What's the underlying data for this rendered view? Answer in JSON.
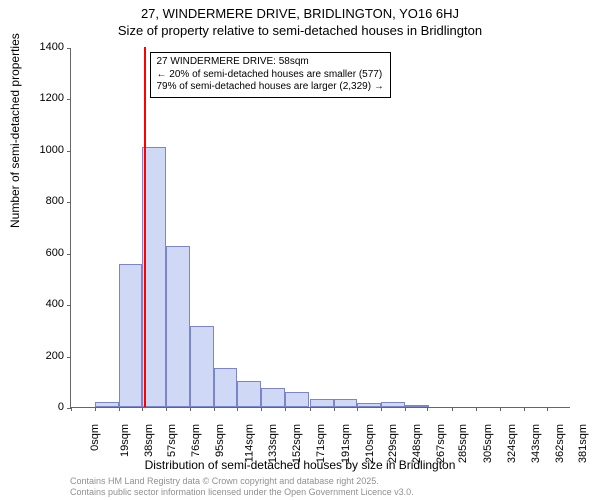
{
  "title": {
    "line1": "27, WINDERMERE DRIVE, BRIDLINGTON, YO16 6HJ",
    "line2": "Size of property relative to semi-detached houses in Bridlington"
  },
  "axes": {
    "ylabel": "Number of semi-detached properties",
    "xlabel": "Distribution of semi-detached houses by size in Bridlington",
    "ylim": [
      0,
      1400
    ],
    "yticks": [
      0,
      200,
      400,
      600,
      800,
      1000,
      1200,
      1400
    ],
    "xlim_sqm": [
      0,
      400
    ],
    "xticks_sqm": [
      0,
      19,
      38,
      57,
      76,
      95,
      114,
      133,
      152,
      171,
      191,
      210,
      229,
      248,
      267,
      285,
      305,
      324,
      343,
      362,
      381
    ],
    "xtick_suffix": "sqm",
    "label_fontsize": 12,
    "tick_fontsize": 11
  },
  "chart": {
    "type": "histogram",
    "bar_fill": "#cfd9f5",
    "bar_border": "#7a86c9",
    "bin_width_sqm": 19,
    "bins": [
      {
        "start": 0,
        "count": 0
      },
      {
        "start": 19,
        "count": 20
      },
      {
        "start": 38,
        "count": 555
      },
      {
        "start": 57,
        "count": 1010
      },
      {
        "start": 76,
        "count": 625
      },
      {
        "start": 95,
        "count": 315
      },
      {
        "start": 114,
        "count": 150
      },
      {
        "start": 133,
        "count": 100
      },
      {
        "start": 152,
        "count": 75
      },
      {
        "start": 171,
        "count": 60
      },
      {
        "start": 191,
        "count": 30
      },
      {
        "start": 210,
        "count": 30
      },
      {
        "start": 229,
        "count": 15
      },
      {
        "start": 248,
        "count": 20
      },
      {
        "start": 267,
        "count": 5
      },
      {
        "start": 285,
        "count": 0
      },
      {
        "start": 305,
        "count": 0
      },
      {
        "start": 324,
        "count": 0
      },
      {
        "start": 343,
        "count": 0
      },
      {
        "start": 362,
        "count": 0
      },
      {
        "start": 381,
        "count": 0
      }
    ]
  },
  "marker": {
    "value_sqm": 58,
    "color": "#ff0000",
    "width": 2
  },
  "annotation": {
    "line1": "27 WINDERMERE DRIVE: 58sqm",
    "line2": "← 20% of semi-detached houses are smaller (577)",
    "line3": "79% of semi-detached houses are larger (2,329) →",
    "border_color": "#000000",
    "background": "#ffffff"
  },
  "footer": {
    "line1": "Contains HM Land Registry data © Crown copyright and database right 2025.",
    "line2": "Contains public sector information licensed under the Open Government Licence v3.0."
  },
  "colors": {
    "background": "#ffffff",
    "axis": "#666666",
    "text": "#000000",
    "footer_text": "#909090"
  }
}
